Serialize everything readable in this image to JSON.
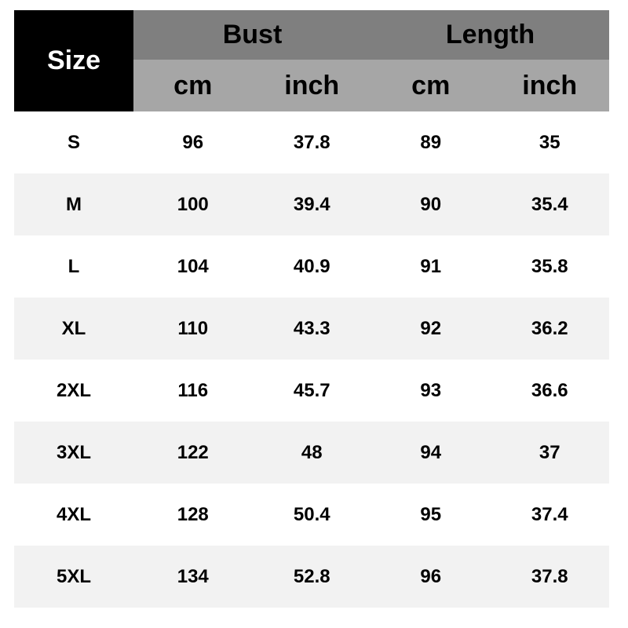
{
  "header": {
    "size": "Size",
    "groups": [
      "Bust",
      "Length"
    ],
    "units": [
      "cm",
      "inch",
      "cm",
      "inch"
    ]
  },
  "rows": [
    [
      "S",
      "96",
      "37.8",
      "89",
      "35"
    ],
    [
      "M",
      "100",
      "39.4",
      "90",
      "35.4"
    ],
    [
      "L",
      "104",
      "40.9",
      "91",
      "35.8"
    ],
    [
      "XL",
      "110",
      "43.3",
      "92",
      "36.2"
    ],
    [
      "2XL",
      "116",
      "45.7",
      "93",
      "36.6"
    ],
    [
      "3XL",
      "122",
      "48",
      "94",
      "37"
    ],
    [
      "4XL",
      "128",
      "50.4",
      "95",
      "37.4"
    ],
    [
      "5XL",
      "134",
      "52.8",
      "96",
      "37.8"
    ]
  ],
  "colors": {
    "size_header": "#000000",
    "group_header": "#7f7f7f",
    "unit_header": "#a6a6a6",
    "stripe": "#f2f2f2"
  }
}
